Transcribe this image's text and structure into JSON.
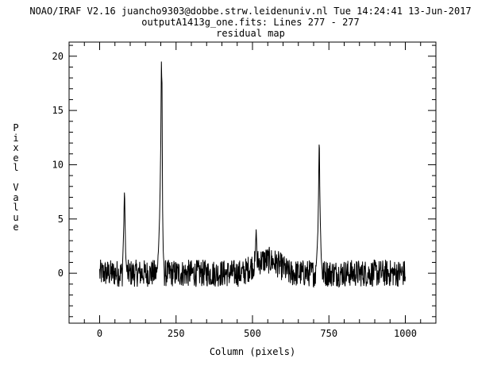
{
  "header": {
    "line1": "NOAO/IRAF V2.16 juancho9303@dobbe.strw.leidenuniv.nl Tue 14:24:41 13-Jun-2017",
    "line2": "outputA1413g_one.fits: Lines 277 - 277",
    "line3": "residual map"
  },
  "chart_data": {
    "type": "line",
    "title": "residual map",
    "xlabel": "Column (pixels)",
    "ylabel": "Pixel Value",
    "xlim": [
      -100,
      1100
    ],
    "ylim": [
      -4.6,
      21.3
    ],
    "xticks": [
      0,
      250,
      500,
      750,
      1000
    ],
    "yticks": [
      0,
      5,
      10,
      15,
      20
    ],
    "grid": false,
    "noise": {
      "x_start": 0,
      "x_end": 1000,
      "baseline": 0,
      "amplitude": 0.9
    },
    "bumps": [
      {
        "x_start": 470,
        "x_end": 620,
        "height": 1.2
      }
    ],
    "series": [
      {
        "x": [
          75,
          77,
          79,
          80,
          81,
          82,
          83,
          84,
          85,
          87,
          89
        ],
        "y": [
          0.8,
          2.5,
          4.5,
          6.0,
          7.4,
          6.8,
          5.0,
          3.5,
          2.0,
          0.8,
          0.2
        ]
      },
      {
        "x": [
          190,
          193,
          196,
          198,
          200,
          201,
          202,
          203,
          204,
          205,
          206,
          208,
          211
        ],
        "y": [
          1.0,
          2.5,
          5.0,
          8.0,
          12.0,
          16.0,
          19.6,
          18.0,
          17.5,
          11.0,
          6.0,
          2.0,
          0.5
        ],
        "name": ""
      },
      {
        "x": [
          708,
          711,
          714,
          716,
          717,
          718,
          719,
          720,
          722,
          725,
          728
        ],
        "y": [
          0.5,
          2.0,
          4.0,
          7.0,
          9.5,
          11.8,
          11.5,
          8.0,
          4.5,
          1.5,
          0.3
        ]
      },
      {
        "x": [
          510,
          512,
          514
        ],
        "y": [
          2.5,
          3.9,
          2.5
        ]
      }
    ]
  }
}
